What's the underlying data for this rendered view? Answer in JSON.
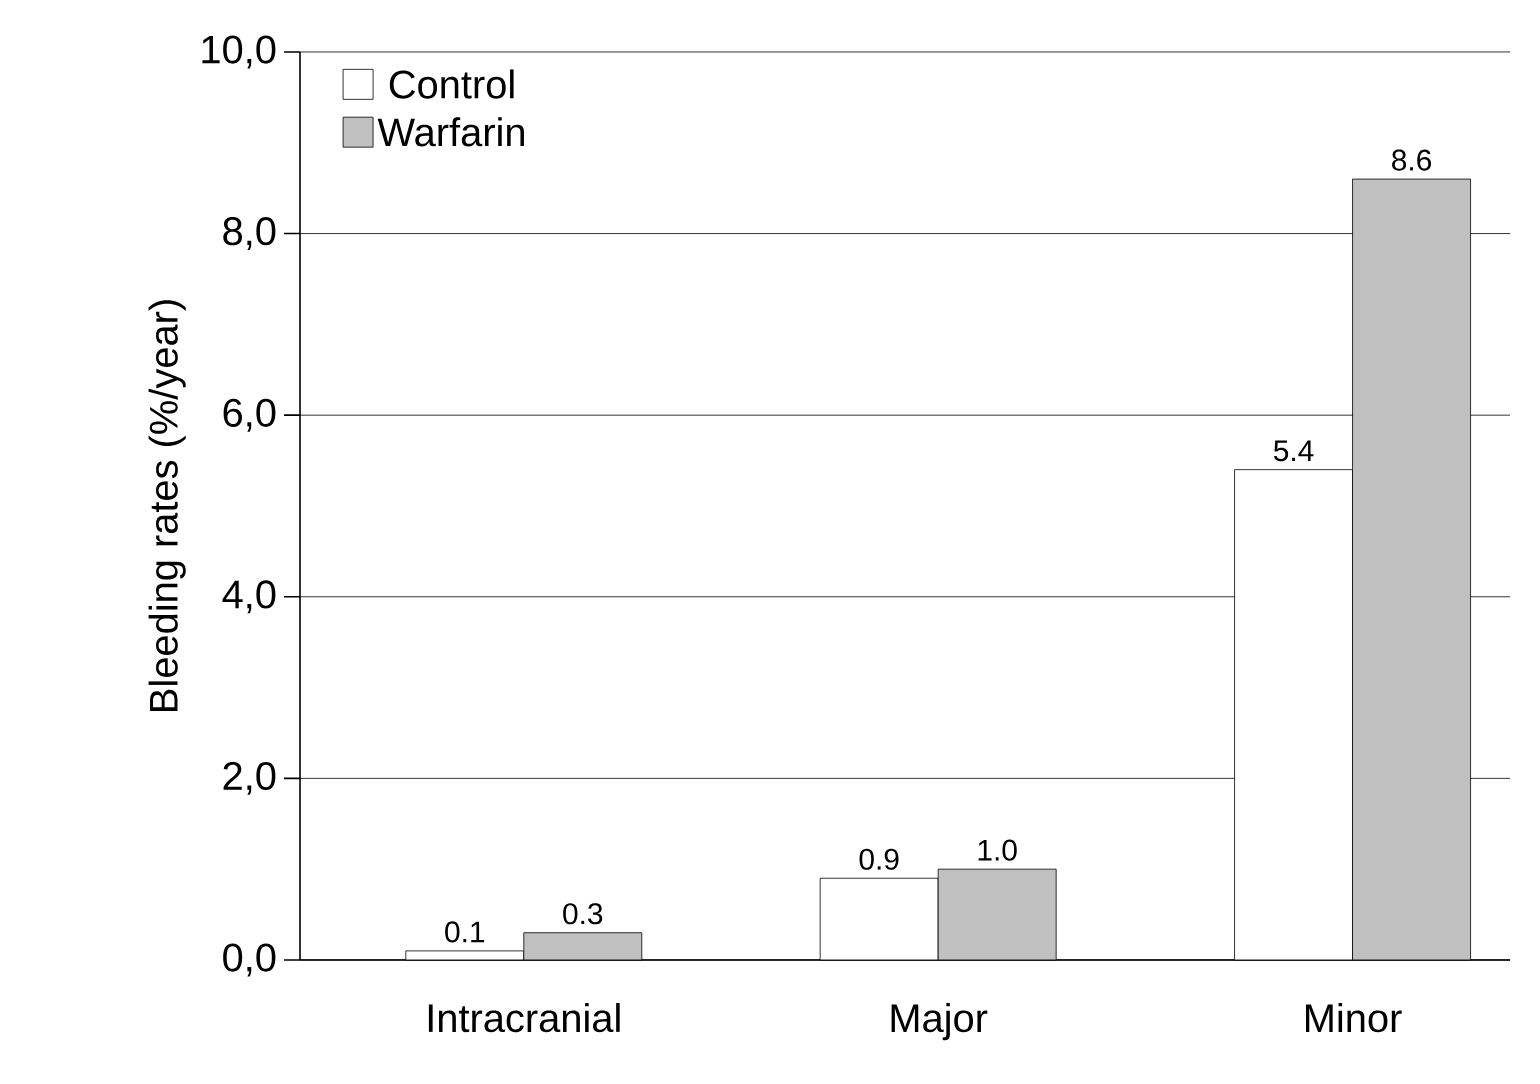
{
  "chart_data": {
    "type": "bar",
    "ylabel": "Bleeding rates (%/year)",
    "categories": [
      "Intracranial",
      "Major",
      "Minor"
    ],
    "series": [
      {
        "name": "Control",
        "color": "#ffffff",
        "values": [
          0.1,
          0.9,
          5.4
        ],
        "value_labels": [
          "0.1",
          "0.9",
          "5.4"
        ]
      },
      {
        "name": "Warfarin",
        "color": "#c0c0c0",
        "values": [
          0.3,
          1.0,
          8.6
        ],
        "value_labels": [
          "0.3",
          "1.0",
          "8.6"
        ]
      }
    ],
    "ylim": [
      0,
      10
    ],
    "yticks": [
      {
        "value": 0,
        "label": "0,0"
      },
      {
        "value": 2,
        "label": "2,0"
      },
      {
        "value": 4,
        "label": "4,0"
      },
      {
        "value": 6,
        "label": "6,0"
      },
      {
        "value": 8,
        "label": "8,0"
      },
      {
        "value": 10,
        "label": "10,0"
      }
    ],
    "grid": "y",
    "legend": "top left"
  }
}
